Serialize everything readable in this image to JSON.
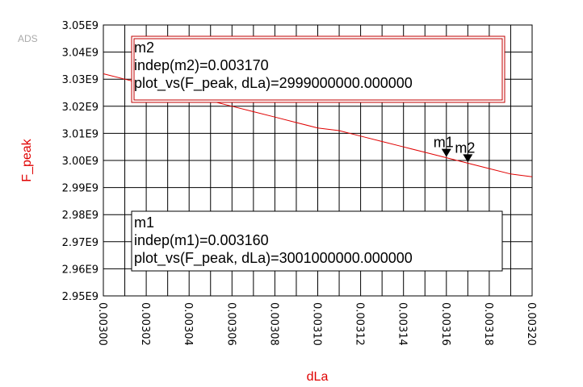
{
  "chart_data": {
    "type": "line",
    "logo": "ADS",
    "xlabel": "dLa",
    "ylabel": "F_peak",
    "xlim": [
      0.003,
      0.0032
    ],
    "ylim": [
      2950000000,
      3050000000
    ],
    "x_ticks": [
      "0.00300",
      "0.00302",
      "0.00304",
      "0.00306",
      "0.00308",
      "0.00310",
      "0.00312",
      "0.00314",
      "0.00316",
      "0.00318",
      "0.00320"
    ],
    "y_ticks": [
      "3.05E9",
      "3.04E9",
      "3.03E9",
      "3.02E9",
      "3.01E9",
      "3.00E9",
      "2.99E9",
      "2.98E9",
      "2.97E9",
      "2.96E9",
      "2.95E9"
    ],
    "grid": true,
    "series": [
      {
        "color": "#e00000",
        "x": [
          0.003,
          0.00301,
          0.00302,
          0.00303,
          0.00304,
          0.00305,
          0.00306,
          0.00307,
          0.00308,
          0.00309,
          0.0031,
          0.00311,
          0.00312,
          0.00313,
          0.00314,
          0.00315,
          0.00316,
          0.00317,
          0.00318,
          0.00319,
          0.0032
        ],
        "y": [
          3032000000,
          3030000000,
          3028000000,
          3026000000,
          3024000000,
          3022000000,
          3020000000,
          3018000000,
          3016000000,
          3014000000,
          3012000000,
          3011000000,
          3009000000,
          3007000000,
          3005000000,
          3003000000,
          3001000000,
          2999000000,
          2997000000,
          2995000000,
          2994000000
        ]
      }
    ],
    "markers": [
      {
        "name": "m1",
        "x": 0.00316,
        "y": 3001000000
      },
      {
        "name": "m2",
        "x": 0.00317,
        "y": 2999000000
      }
    ],
    "marker_boxes": [
      {
        "lines": [
          "m2",
          "indep(m2)=0.003170",
          "plot_vs(F_peak, dLa)=2999000000.000000"
        ],
        "border_color": "#c00000"
      },
      {
        "lines": [
          "m1",
          "indep(m1)=0.003160",
          "plot_vs(F_peak, dLa)=3001000000.000000"
        ],
        "border_color": "#000000"
      }
    ]
  }
}
